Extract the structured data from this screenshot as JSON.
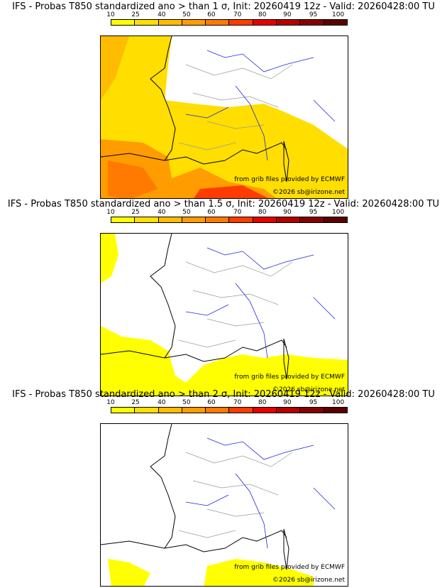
{
  "colors": {
    "scale": [
      "#ffff00",
      "#ffde00",
      "#ffbc00",
      "#ff9c00",
      "#ff7a00",
      "#ff3c00",
      "#e60000",
      "#b40000",
      "#870000",
      "#5a0000"
    ],
    "coast": "#000000",
    "river": "#2222dd",
    "admin": "#999999"
  },
  "colorbar": {
    "ticks": [
      "10",
      "25",
      "40",
      "50",
      "60",
      "70",
      "80",
      "90",
      "95",
      "100"
    ]
  },
  "panels": [
    {
      "title": "IFS - Probas T850  standardized ano > than 1 σ, Init: 20260419 12z - Valid: 20260428:00 TU",
      "credit_line1": "from grib files provided by ECMWF",
      "credit_line2": "©2026 sb@irizone.net"
    },
    {
      "title": "IFS - Probas T850  standardized ano > than 1.5 σ, Init: 20260419 12z - Valid: 20260428:00 TU",
      "credit_line1": "from grib files provided by ECMWF",
      "credit_line2": "©2026 sb@irizone.net"
    },
    {
      "title": "IFS - Probas T850  standardized ano > than 2 σ, Init: 20260419 12z - Valid: 20260428:00 TU",
      "credit_line1": "from grib files provided by ECMWF",
      "credit_line2": "©2026 sb@irizone.net"
    }
  ]
}
